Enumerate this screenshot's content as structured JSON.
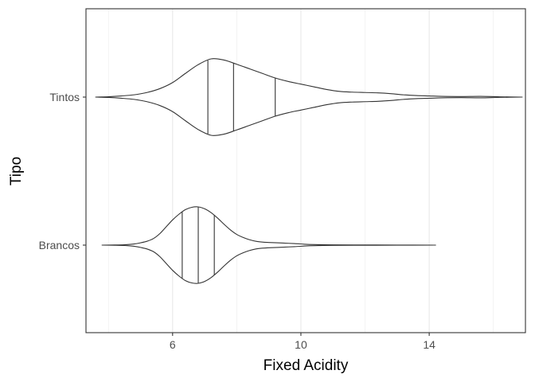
{
  "chart_data": {
    "type": "violin",
    "orientation": "horizontal",
    "xlabel": "Fixed Acidity",
    "ylabel": "Tipo",
    "xlim": [
      3.3,
      17.0
    ],
    "x_ticks": [
      6,
      10,
      14
    ],
    "x_tick_labels": [
      "6",
      "10",
      "14"
    ],
    "x_minor_gridlines": [
      4,
      8,
      12,
      16
    ],
    "grid": true,
    "legend": "none",
    "categories": [
      "Tintos",
      "Brancos"
    ],
    "series": [
      {
        "name": "Tintos",
        "min": 3.6,
        "max": 16.9,
        "quantiles": [
          7.1,
          7.9,
          9.2
        ],
        "density": [
          [
            3.6,
            0.0
          ],
          [
            4.0,
            0.01
          ],
          [
            4.4,
            0.03
          ],
          [
            4.8,
            0.06
          ],
          [
            5.2,
            0.12
          ],
          [
            5.6,
            0.22
          ],
          [
            6.0,
            0.38
          ],
          [
            6.4,
            0.62
          ],
          [
            6.8,
            0.85
          ],
          [
            7.2,
            1.0
          ],
          [
            7.6,
            0.97
          ],
          [
            8.0,
            0.86
          ],
          [
            8.4,
            0.74
          ],
          [
            8.8,
            0.62
          ],
          [
            9.2,
            0.5
          ],
          [
            9.6,
            0.41
          ],
          [
            10.0,
            0.34
          ],
          [
            10.4,
            0.27
          ],
          [
            10.8,
            0.2
          ],
          [
            11.2,
            0.15
          ],
          [
            11.6,
            0.13
          ],
          [
            12.0,
            0.12
          ],
          [
            12.4,
            0.11
          ],
          [
            12.8,
            0.09
          ],
          [
            13.2,
            0.06
          ],
          [
            13.6,
            0.04
          ],
          [
            14.0,
            0.03
          ],
          [
            14.4,
            0.02
          ],
          [
            15.0,
            0.015
          ],
          [
            15.6,
            0.02
          ],
          [
            16.2,
            0.008
          ],
          [
            16.9,
            0.0
          ]
        ]
      },
      {
        "name": "Brancos",
        "min": 3.8,
        "max": 14.2,
        "quantiles": [
          6.3,
          6.8,
          7.3
        ],
        "density": [
          [
            3.8,
            0.0
          ],
          [
            4.2,
            0.003
          ],
          [
            4.5,
            0.01
          ],
          [
            4.8,
            0.03
          ],
          [
            5.0,
            0.06
          ],
          [
            5.2,
            0.1
          ],
          [
            5.4,
            0.17
          ],
          [
            5.6,
            0.3
          ],
          [
            5.8,
            0.48
          ],
          [
            6.0,
            0.66
          ],
          [
            6.2,
            0.81
          ],
          [
            6.4,
            0.93
          ],
          [
            6.6,
            0.99
          ],
          [
            6.8,
            1.0
          ],
          [
            7.0,
            0.95
          ],
          [
            7.2,
            0.85
          ],
          [
            7.4,
            0.71
          ],
          [
            7.6,
            0.55
          ],
          [
            7.8,
            0.4
          ],
          [
            8.0,
            0.28
          ],
          [
            8.2,
            0.2
          ],
          [
            8.4,
            0.14
          ],
          [
            8.6,
            0.1
          ],
          [
            8.8,
            0.08
          ],
          [
            9.0,
            0.07
          ],
          [
            9.4,
            0.055
          ],
          [
            9.8,
            0.04
          ],
          [
            10.2,
            0.02
          ],
          [
            10.6,
            0.012
          ],
          [
            11.0,
            0.008
          ],
          [
            12.0,
            0.004
          ],
          [
            13.0,
            0.002
          ],
          [
            14.2,
            0.0
          ]
        ]
      }
    ]
  }
}
